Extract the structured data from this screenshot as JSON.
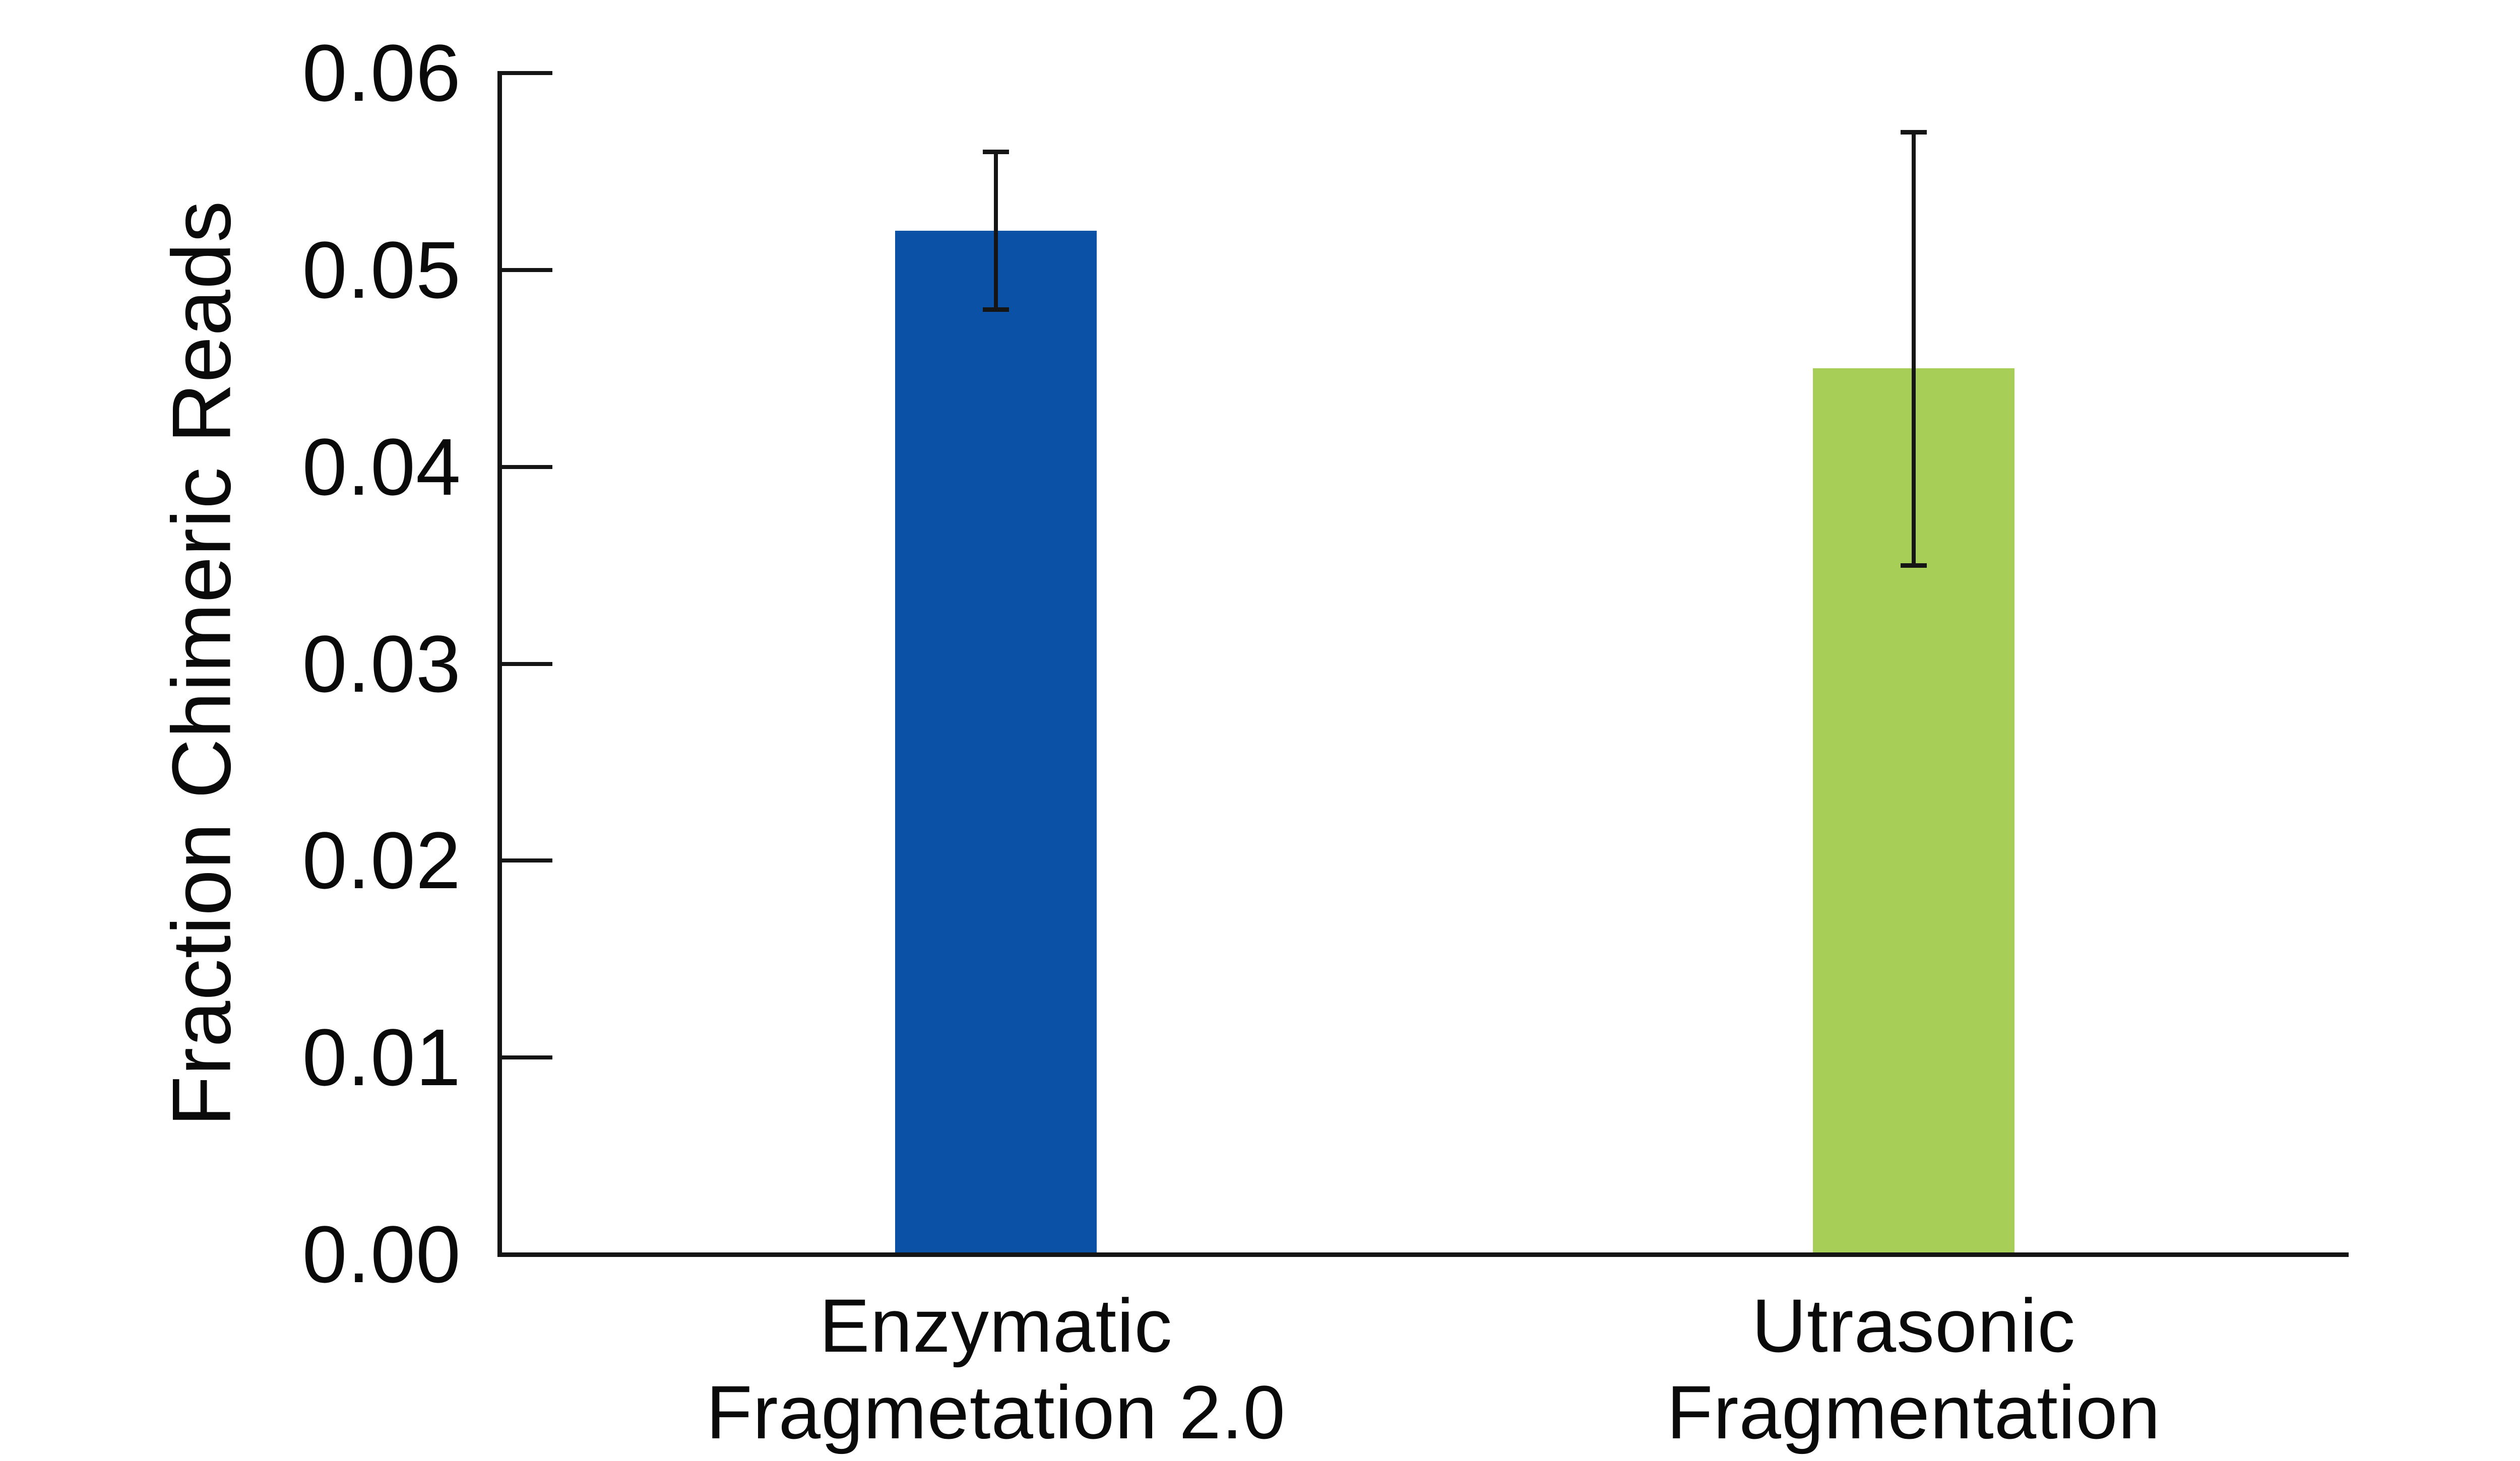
{
  "chart_data": {
    "type": "bar",
    "title": "",
    "ylabel": "Fraction Chimeric Reads",
    "xlabel": "",
    "ylim": [
      0,
      0.06
    ],
    "ytick_labels": [
      "0.00",
      "0.01",
      "0.02",
      "0.03",
      "0.04",
      "0.05",
      "0.06"
    ],
    "grid": false,
    "legend": false,
    "tick_direction": "in",
    "background_color": "#ffffff",
    "axis_color": "#151515",
    "error_bar_color": "#151515",
    "bars": [
      {
        "category_lines": [
          "Enzymatic",
          "Fragmetation 2.0"
        ],
        "value": 0.052,
        "error_low": 0.048,
        "error_high": 0.056,
        "color": "#0b51a5"
      },
      {
        "category_lines": [
          "Utrasonic",
          "Fragmentation"
        ],
        "value": 0.045,
        "error_low": 0.035,
        "error_high": 0.057,
        "color": "#a7ce57"
      }
    ]
  }
}
